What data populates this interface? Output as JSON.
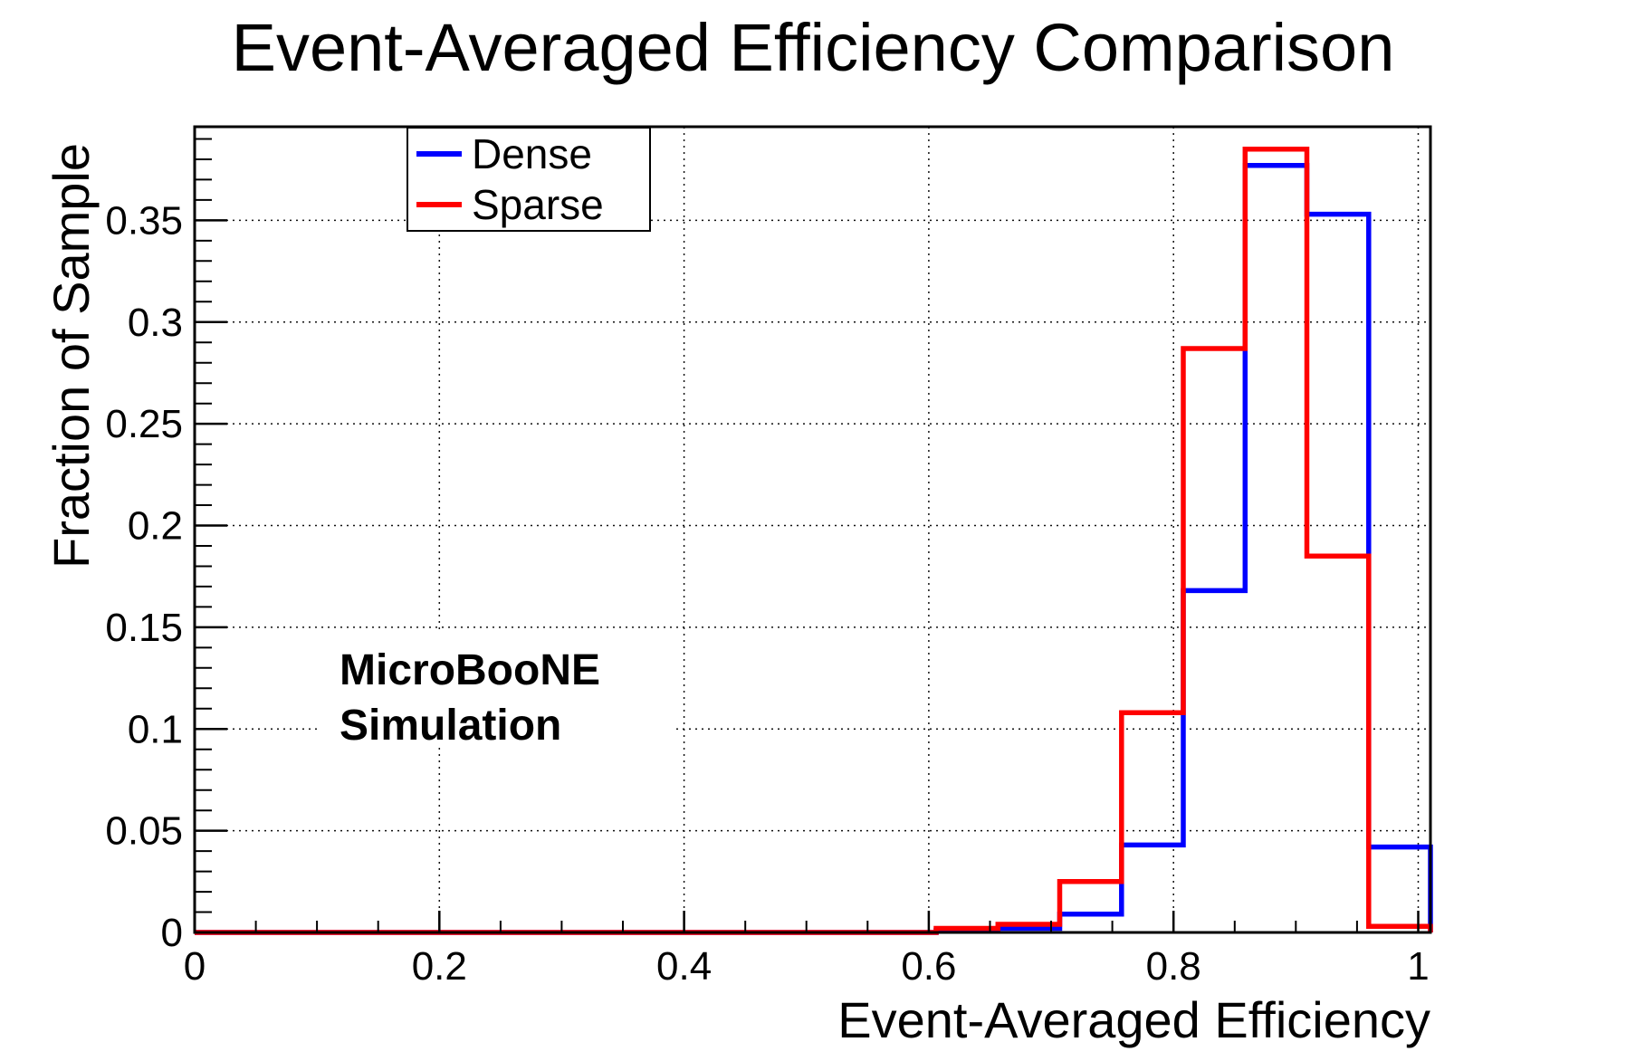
{
  "chart": {
    "watermark": {
      "line1": "MicroBooNE",
      "line2": "Simulation"
    }
  },
  "chart_data": {
    "type": "step-histogram",
    "title": "Event-Averaged Efficiency Comparison",
    "xlabel": "Event-Averaged Efficiency",
    "ylabel": "Fraction of Sample",
    "bin_start": 0,
    "bin_width": 0.0505,
    "n_bins": 20,
    "series": [
      {
        "name": "Dense",
        "color": "#0000ff",
        "values": [
          0,
          0,
          0,
          0,
          0,
          0,
          0,
          0,
          0,
          0,
          0,
          0,
          0.001,
          0.002,
          0.009,
          0.043,
          0.168,
          0.377,
          0.353,
          0.042
        ]
      },
      {
        "name": "Sparse",
        "color": "#ff0000",
        "values": [
          0,
          0,
          0,
          0,
          0,
          0,
          0,
          0,
          0,
          0,
          0,
          0,
          0.002,
          0.004,
          0.025,
          0.108,
          0.287,
          0.385,
          0.185,
          0.003
        ]
      }
    ],
    "x_ticks": [
      0,
      0.2,
      0.4,
      0.6,
      0.8,
      1
    ],
    "x_tick_labels": [
      "0",
      "0.2",
      "0.4",
      "0.6",
      "0.8",
      "1"
    ],
    "x_minor_step": 0.05,
    "y_ticks": [
      0,
      0.05,
      0.1,
      0.15,
      0.2,
      0.25,
      0.3,
      0.35
    ],
    "y_tick_labels": [
      "0",
      "0.05",
      "0.1",
      "0.15",
      "0.2",
      "0.25",
      "0.3",
      "0.35"
    ],
    "y_minor_step": 0.01,
    "xlim": [
      0,
      1.01
    ],
    "ylim": [
      0,
      0.396
    ],
    "grid": true,
    "legend_position": "top-left-inside",
    "frame_color": "#000000",
    "grid_color": "#111111"
  }
}
